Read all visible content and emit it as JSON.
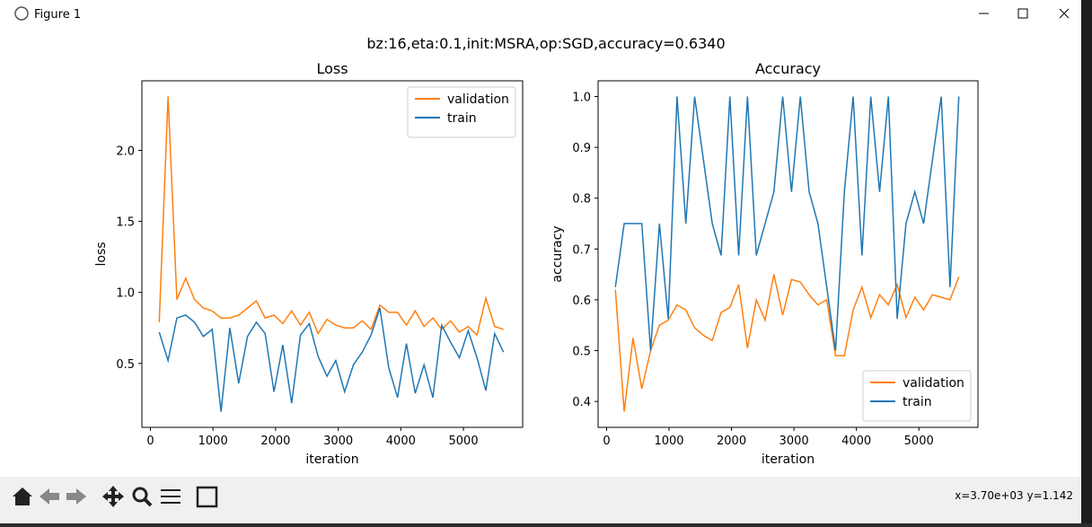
{
  "window": {
    "title": "Figure 1",
    "figure_title": "bz:16,eta:0.1,init:MSRA,op:SGD,accuracy=0.6340",
    "status": "x=3.70e+03 y=1.142"
  },
  "chart_data": [
    {
      "type": "line",
      "title": "Loss",
      "x_label": "iteration",
      "y_label": "loss",
      "x": [
        141,
        282,
        423,
        564,
        705,
        846,
        987,
        1128,
        1269,
        1410,
        1551,
        1692,
        1833,
        1974,
        2115,
        2256,
        2397,
        2538,
        2679,
        2820,
        2961,
        3102,
        3243,
        3384,
        3525,
        3666,
        3807,
        3948,
        4089,
        4230,
        4371,
        4512,
        4653,
        4794,
        4935,
        5076,
        5217,
        5358,
        5499,
        5640
      ],
      "series": [
        {
          "name": "validation",
          "color": "#ff7f0e",
          "values": [
            0.79,
            2.38,
            0.95,
            1.1,
            0.95,
            0.89,
            0.87,
            0.82,
            0.82,
            0.84,
            0.89,
            0.94,
            0.82,
            0.84,
            0.78,
            0.87,
            0.77,
            0.86,
            0.71,
            0.81,
            0.77,
            0.75,
            0.75,
            0.8,
            0.74,
            0.91,
            0.86,
            0.86,
            0.77,
            0.87,
            0.76,
            0.82,
            0.74,
            0.8,
            0.72,
            0.76,
            0.7,
            0.96,
            0.76,
            0.74
          ]
        },
        {
          "name": "train",
          "color": "#1f77b4",
          "values": [
            0.72,
            0.52,
            0.82,
            0.84,
            0.79,
            0.69,
            0.74,
            0.16,
            0.75,
            0.36,
            0.69,
            0.79,
            0.71,
            0.3,
            0.63,
            0.22,
            0.7,
            0.78,
            0.55,
            0.41,
            0.52,
            0.3,
            0.49,
            0.58,
            0.7,
            0.89,
            0.47,
            0.26,
            0.64,
            0.29,
            0.49,
            0.26,
            0.77,
            0.65,
            0.54,
            0.73,
            0.54,
            0.31,
            0.71,
            0.58
          ]
        }
      ],
      "xlim": [
        -136,
        5946
      ],
      "xticks": [
        0,
        1000,
        2000,
        3000,
        4000,
        5000
      ],
      "ylim": [
        0.05,
        2.49
      ],
      "yticks": [
        0.5,
        {
          "value": 1.0,
          "label": "1.0"
        },
        1.5,
        {
          "value": 2.0,
          "label": "2.0"
        }
      ],
      "legend": "upper right"
    },
    {
      "type": "line",
      "title": "Accuracy",
      "x_label": "iteration",
      "y_label": "accuracy",
      "x": [
        141,
        282,
        423,
        564,
        705,
        846,
        987,
        1128,
        1269,
        1410,
        1551,
        1692,
        1833,
        1974,
        2115,
        2256,
        2397,
        2538,
        2679,
        2820,
        2961,
        3102,
        3243,
        3384,
        3525,
        3666,
        3807,
        3948,
        4089,
        4230,
        4371,
        4512,
        4653,
        4794,
        4935,
        5076,
        5217,
        5358,
        5499,
        5640
      ],
      "series": [
        {
          "name": "validation",
          "color": "#ff7f0e",
          "values": [
            0.62,
            0.38,
            0.525,
            0.425,
            0.5,
            0.55,
            0.56,
            0.59,
            0.58,
            0.545,
            0.53,
            0.52,
            0.575,
            0.585,
            0.63,
            0.505,
            0.6,
            0.56,
            0.65,
            0.57,
            0.64,
            0.635,
            0.61,
            0.59,
            0.6,
            0.49,
            0.49,
            0.58,
            0.625,
            0.565,
            0.61,
            0.59,
            0.63,
            0.565,
            0.605,
            0.58,
            0.61,
            0.605,
            0.6,
            0.645
          ]
        },
        {
          "name": "train",
          "color": "#1f77b4",
          "values": [
            0.625,
            0.75,
            0.75,
            0.75,
            0.5,
            0.75,
            0.5625,
            1.0,
            0.75,
            1.0,
            0.875,
            0.75,
            0.6875,
            1.0,
            0.6875,
            1.0,
            0.6875,
            0.75,
            0.8125,
            1.0,
            0.8125,
            1.0,
            0.8125,
            0.75,
            0.625,
            0.5,
            0.8125,
            1.0,
            0.6875,
            1.0,
            0.8125,
            1.0,
            0.5625,
            0.75,
            0.8125,
            0.75,
            0.875,
            1.0,
            0.625,
            1.0
          ]
        }
      ],
      "xlim": [
        -136,
        5946
      ],
      "xticks": [
        0,
        1000,
        2000,
        3000,
        4000,
        5000
      ],
      "ylim": [
        0.349,
        1.031
      ],
      "yticks": [
        0.4,
        0.5,
        0.6,
        0.7,
        0.8,
        0.9,
        {
          "value": 1.0,
          "label": "1.0"
        }
      ],
      "legend": "lower right"
    }
  ]
}
